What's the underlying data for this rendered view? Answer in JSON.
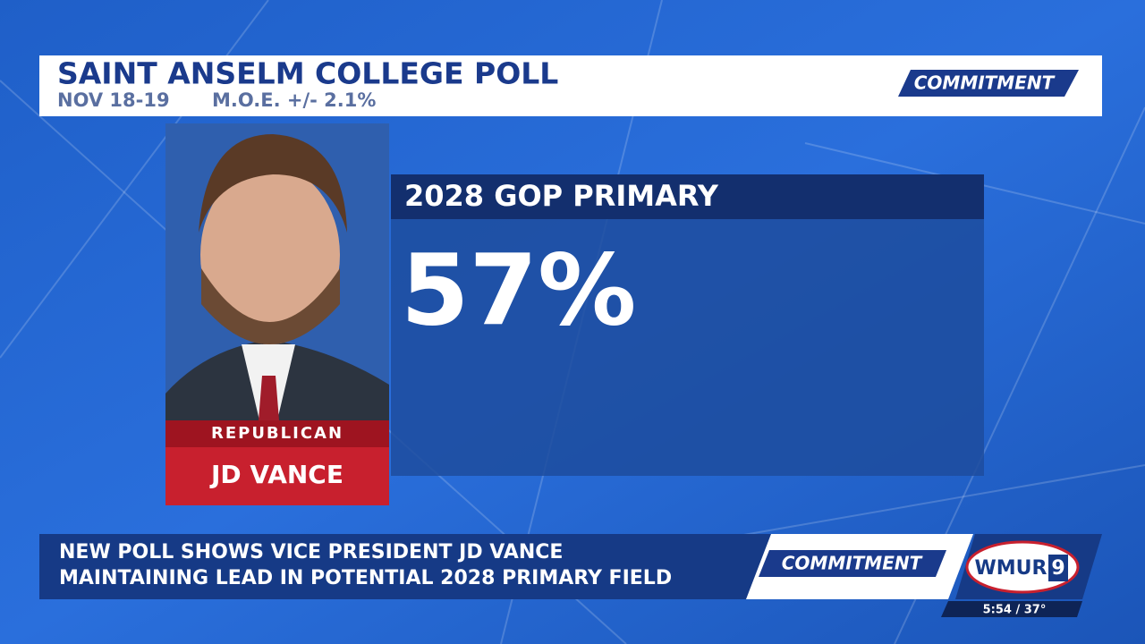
{
  "header": {
    "title": "SAINT ANSELM COLLEGE POLL",
    "dates": "NOV 18-19",
    "moe": "M.O.E. +/- 2.1%",
    "logo": "COMMITMENT"
  },
  "candidate": {
    "party": "REPUBLICAN",
    "name": "JD VANCE"
  },
  "panel": {
    "title": "2028 GOP PRIMARY",
    "value": "57%"
  },
  "lower_third": {
    "lines": [
      "NEW POLL SHOWS VICE PRESIDENT JD VANCE",
      "MAINTAINING LEAD IN POTENTIAL 2028 PRIMARY FIELD"
    ],
    "logo": "COMMITMENT",
    "station": "WMUR",
    "channel": "9",
    "status": "5:54 / 37°"
  }
}
